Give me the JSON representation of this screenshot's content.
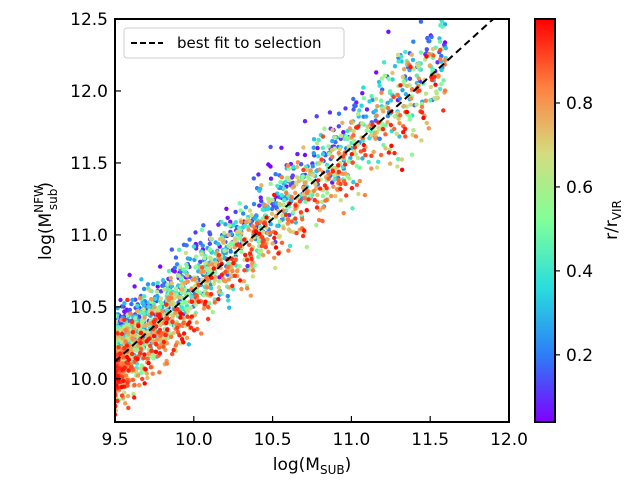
{
  "chart_data": {
    "type": "scatter",
    "title": "",
    "xlabel": {
      "main": "log(M",
      "sub": "SUB",
      "close": ")"
    },
    "ylabel": {
      "main": "log(M",
      "sup": "NFW",
      "sub": "sub",
      "close": ")"
    },
    "xlim": [
      9.5,
      12.0
    ],
    "ylim": [
      9.7,
      12.5
    ],
    "xticks": [
      9.5,
      10.0,
      10.5,
      11.0,
      11.5,
      12.0
    ],
    "xtick_labels": [
      "9.5",
      "10.0",
      "10.5",
      "11.0",
      "11.5",
      "12.0"
    ],
    "yticks": [
      10.0,
      10.5,
      11.0,
      11.5,
      12.0,
      12.5
    ],
    "ytick_labels": [
      "10.0",
      "10.5",
      "11.0",
      "11.5",
      "12.0",
      "12.5"
    ],
    "legend": {
      "position": "upper-left",
      "entries": [
        {
          "label": "best fit to selection",
          "style": "dashed-black-line"
        }
      ]
    },
    "fit_line": {
      "x": [
        9.5,
        11.9
      ],
      "y": [
        10.12,
        12.5
      ]
    },
    "scatter_trend": {
      "slope": 1.0,
      "intercept": 0.62,
      "x_min": 9.5,
      "x_max": 11.6,
      "point_count": 2400,
      "note": "color encodes r/r_VIR; low r/r_VIR points lie above the fit, high r/r_VIR points below"
    },
    "colorbar": {
      "label": {
        "main": "r/r",
        "sub": "VIR"
      },
      "range": [
        0.04,
        1.0
      ],
      "ticks": [
        0.2,
        0.4,
        0.6,
        0.8
      ],
      "tick_labels": [
        "0.2",
        "0.4",
        "0.6",
        "0.8"
      ],
      "colormap": "rainbow",
      "stops": [
        "#8000ff",
        "#2c7ef7",
        "#2adddd",
        "#80ff99",
        "#d4dc7f",
        "#ff7f40",
        "#ff0000"
      ]
    }
  }
}
